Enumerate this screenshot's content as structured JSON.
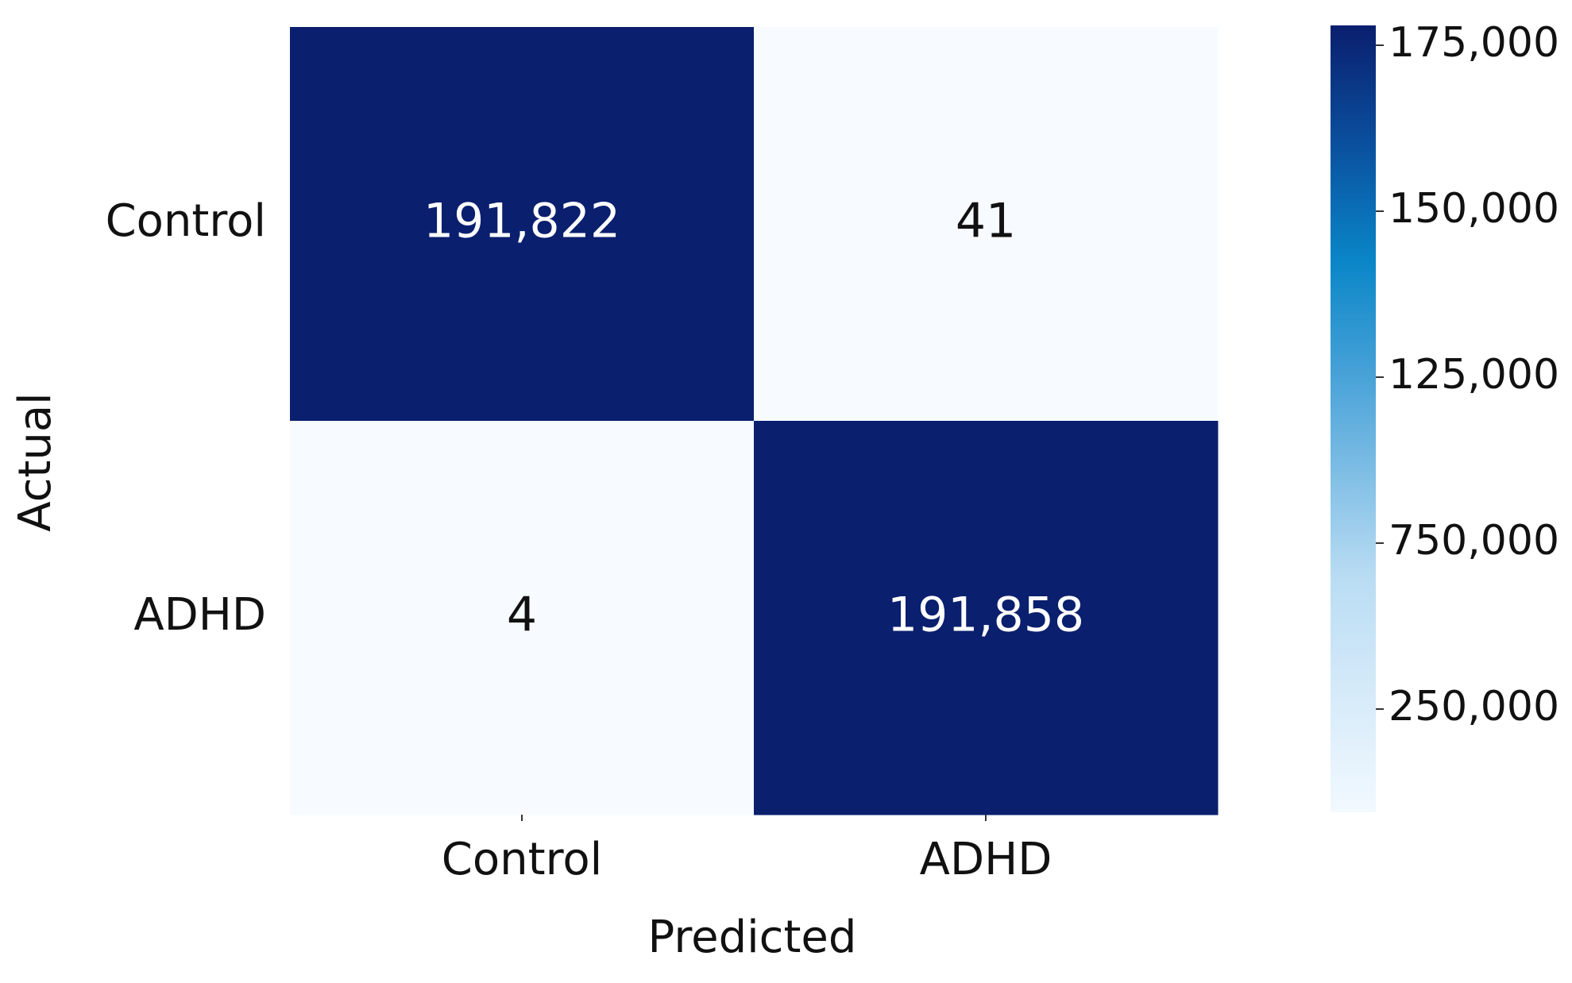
{
  "chart_data": {
    "type": "heatmap",
    "x_label": "Predicted",
    "y_label": "Actual",
    "x_categories": [
      "Control",
      "ADHD"
    ],
    "y_categories": [
      "Control",
      "ADHD"
    ],
    "values": [
      [
        191822,
        41
      ],
      [
        4,
        191858
      ]
    ],
    "value_labels": [
      [
        "191,822",
        "41"
      ],
      [
        "4",
        "191,858"
      ]
    ],
    "colorbar_labels": [
      "175,000",
      "150,000",
      "125,000",
      "750,000",
      "250,000"
    ],
    "colormap": [
      "#f7fbff",
      "#0a1f6e"
    ]
  }
}
